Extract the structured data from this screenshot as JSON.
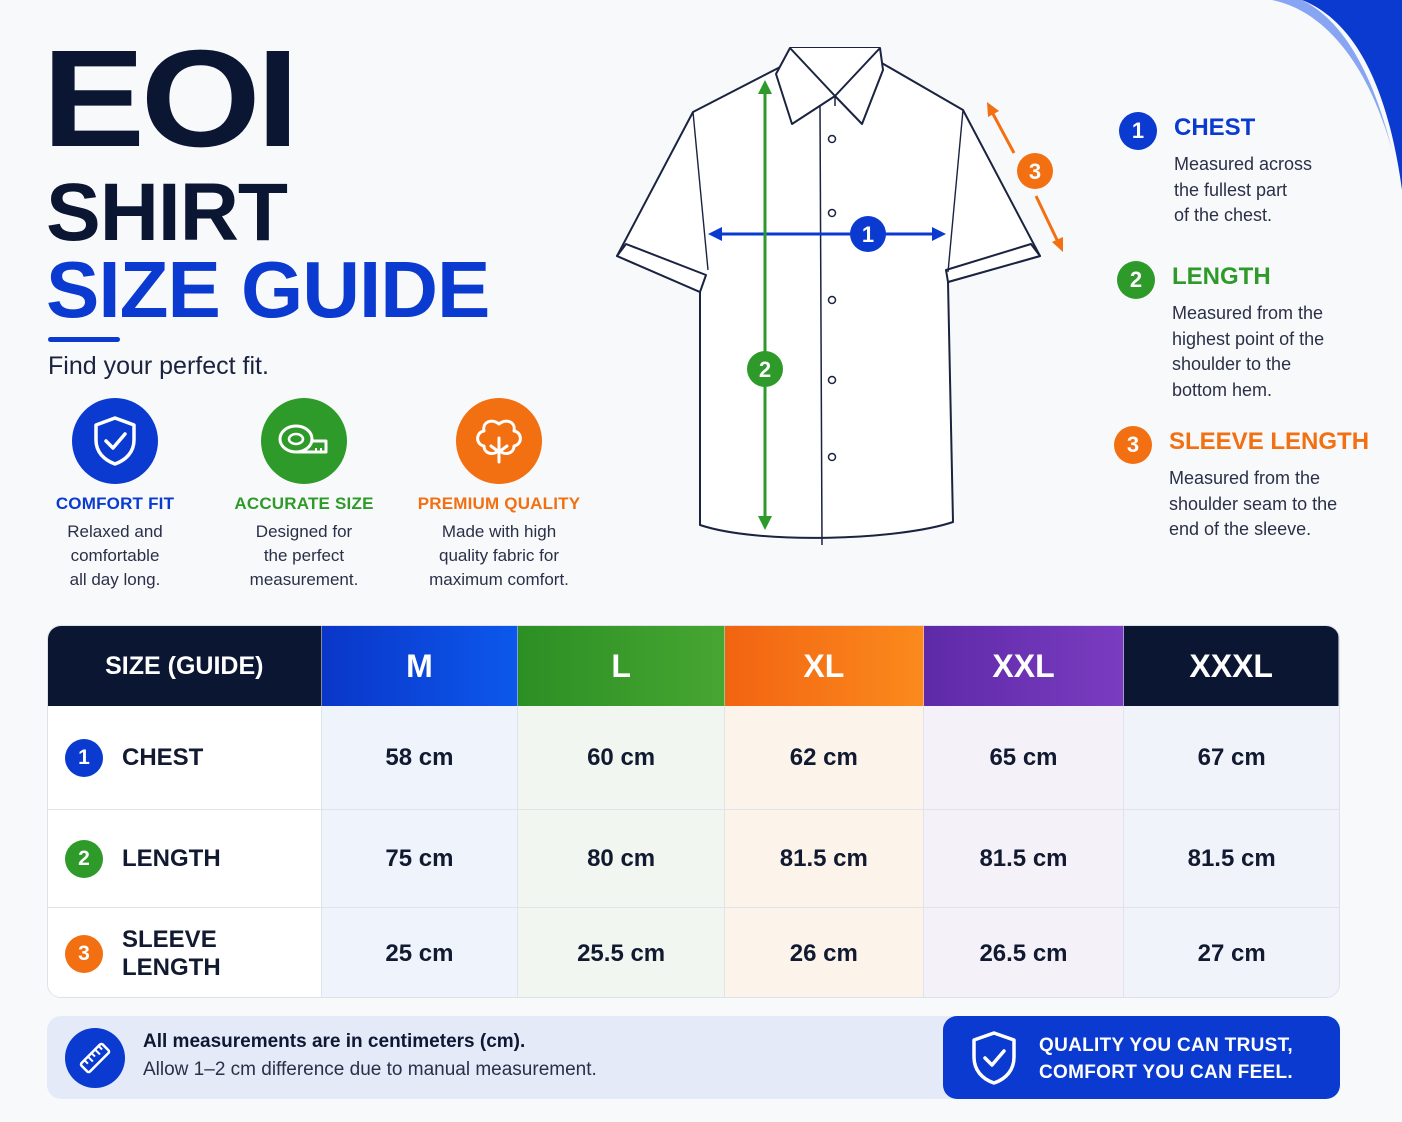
{
  "brand": "EOI",
  "title_line1": "SHIRT",
  "title_line2": "SIZE GUIDE",
  "tagline": "Find your perfect fit.",
  "colors": {
    "navy": "#0b1633",
    "blue": "#0a3ad0",
    "green": "#2e9a2a",
    "orange": "#f26f12",
    "purple": "#6b32b4"
  },
  "features": [
    {
      "icon": "shield-check-icon",
      "title": "COMFORT FIT",
      "desc": [
        "Relaxed and",
        "comfortable",
        "all day long."
      ]
    },
    {
      "icon": "measuring-tape-icon",
      "title": "ACCURATE SIZE",
      "desc": [
        "Designed for",
        "the perfect",
        "measurement."
      ]
    },
    {
      "icon": "cotton-flower-icon",
      "title": "PREMIUM QUALITY",
      "desc": [
        "Made with high",
        "quality fabric for",
        "maximum comfort."
      ]
    }
  ],
  "diagram_markers": [
    "1",
    "2",
    "3"
  ],
  "legend": [
    {
      "num": "1",
      "title": "CHEST",
      "desc": [
        "Measured across",
        "the fullest part",
        "of the chest."
      ]
    },
    {
      "num": "2",
      "title": "LENGTH",
      "desc": [
        "Measured from the",
        "highest point of the",
        "shoulder to the",
        "bottom hem."
      ]
    },
    {
      "num": "3",
      "title": "SLEEVE LENGTH",
      "desc": [
        "Measured from the",
        "shoulder seam to the",
        "end of the sleeve."
      ]
    }
  ],
  "table": {
    "header_label": "SIZE (GUIDE)",
    "sizes": [
      "M",
      "L",
      "XL",
      "XXL",
      "XXXL"
    ],
    "rows": [
      {
        "num": "1",
        "label": "CHEST",
        "values": [
          "58 cm",
          "60 cm",
          "62 cm",
          "65 cm",
          "67 cm"
        ]
      },
      {
        "num": "2",
        "label": "LENGTH",
        "values": [
          "75 cm",
          "80 cm",
          "81.5 cm",
          "81.5 cm",
          "81.5 cm"
        ]
      },
      {
        "num": "3",
        "label": "SLEEVE LENGTH",
        "values": [
          "25 cm",
          "25.5 cm",
          "26 cm",
          "26.5 cm",
          "27 cm"
        ]
      }
    ]
  },
  "footer": {
    "note_strong": "All measurements are in centimeters (cm).",
    "note_regular": "Allow 1–2 cm difference due to manual measurement.",
    "trust_line1": "QUALITY YOU CAN TRUST,",
    "trust_line2": "COMFORT YOU CAN FEEL."
  }
}
